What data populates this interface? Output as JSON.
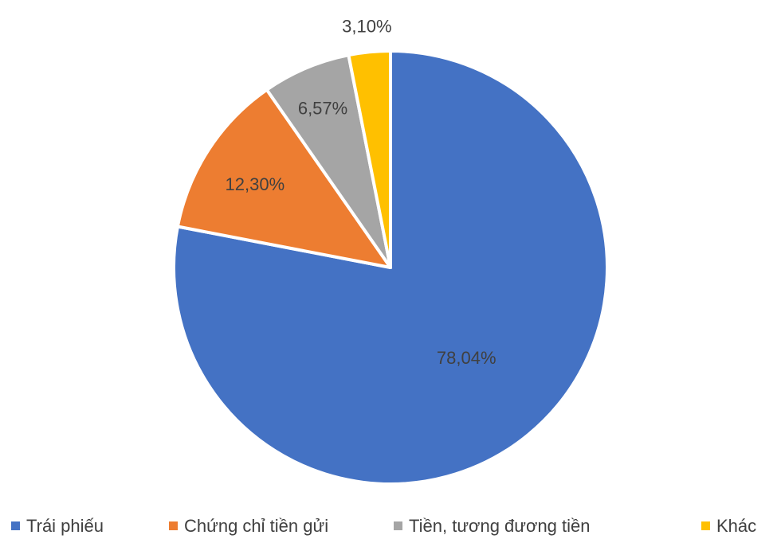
{
  "chart_data": {
    "type": "pie",
    "title": "",
    "start_angle_deg": 0,
    "direction": "clockwise",
    "legend_position": "bottom",
    "slices": [
      {
        "label": "Trái phiếu",
        "value": 78.04,
        "display": "78,04%",
        "color": "#4472C4"
      },
      {
        "label": "Chứng chỉ tiền gửi",
        "value": 12.3,
        "display": "12,30%",
        "color": "#ED7D31"
      },
      {
        "label": "Tiền, tương đương tiền",
        "value": 6.57,
        "display": "6,57%",
        "color": "#A5A5A5"
      },
      {
        "label": "Khác",
        "value": 3.1,
        "display": "3,10%",
        "color": "#FFC000"
      }
    ]
  }
}
